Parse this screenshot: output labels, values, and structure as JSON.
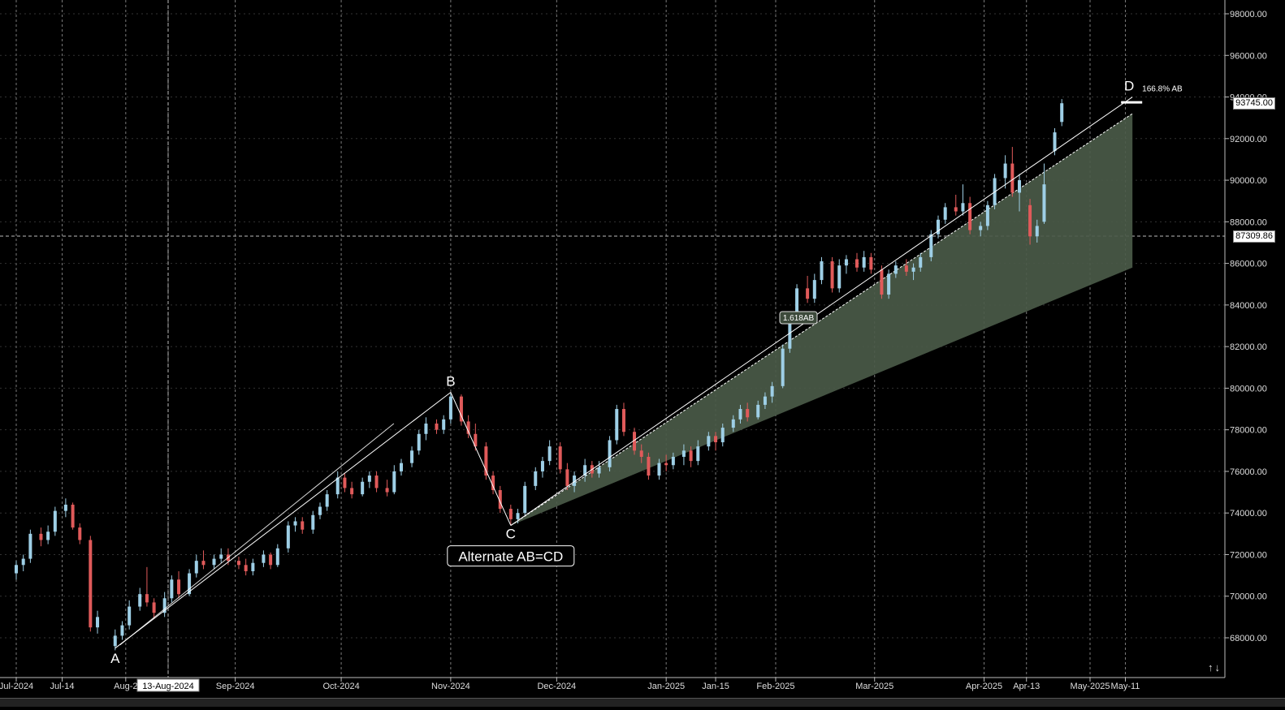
{
  "chart": {
    "background": "#000000",
    "up_color": "#9ecfe6",
    "down_color": "#e05a5a",
    "grid_color": "#7a7a7a",
    "price_axis_labels": [
      "98000.00",
      "96000.00",
      "94000.00",
      "92000.00",
      "90000.00",
      "88000.00",
      "86000.00",
      "84000.00",
      "82000.00",
      "80000.00",
      "78000.00",
      "76000.00",
      "74000.00",
      "72000.00",
      "70000.00",
      "68000.00"
    ],
    "price_tags": {
      "last_price": "93745.00",
      "crosshair_price": "87309.86"
    },
    "date_axis_labels": [
      "Jul-2024",
      "Jul-14",
      "Aug-2",
      "Sep-2024",
      "Oct-2024",
      "Nov-2024",
      "Dec-2024",
      "Jan-2025",
      "Jan-15",
      "Feb-2025",
      "Mar-2025",
      "Apr-2025",
      "Apr-13",
      "May-2025",
      "May-11"
    ],
    "crosshair_date": "13-Aug-2024",
    "pattern": {
      "name": "Alternate AB=CD",
      "points": {
        "A": "A",
        "B": "B",
        "C": "C",
        "D": "D"
      },
      "d_label": "166.8% AB",
      "ratio_label": "1.618AB"
    }
  },
  "chart_data": {
    "type": "candlestick",
    "title": "",
    "ylim": [
      67000,
      99000
    ],
    "x_range": [
      "2024-06-30",
      "2025-05-18"
    ],
    "candles": [
      {
        "date": "2024-07-01",
        "o": 71100,
        "h": 71700,
        "l": 70800,
        "c": 71500
      },
      {
        "date": "2024-07-03",
        "o": 71500,
        "h": 72000,
        "l": 71200,
        "c": 71800
      },
      {
        "date": "2024-07-05",
        "o": 71800,
        "h": 73200,
        "l": 71600,
        "c": 73000
      },
      {
        "date": "2024-07-08",
        "o": 73000,
        "h": 73300,
        "l": 72400,
        "c": 72700
      },
      {
        "date": "2024-07-10",
        "o": 72700,
        "h": 73400,
        "l": 72500,
        "c": 73100
      },
      {
        "date": "2024-07-12",
        "o": 73100,
        "h": 74300,
        "l": 72900,
        "c": 74100
      },
      {
        "date": "2024-07-15",
        "o": 74100,
        "h": 74700,
        "l": 73800,
        "c": 74400
      },
      {
        "date": "2024-07-17",
        "o": 74400,
        "h": 74500,
        "l": 73200,
        "c": 73300
      },
      {
        "date": "2024-07-19",
        "o": 73300,
        "h": 73500,
        "l": 72500,
        "c": 72700
      },
      {
        "date": "2024-07-22",
        "o": 72700,
        "h": 72900,
        "l": 68300,
        "c": 68500
      },
      {
        "date": "2024-07-24",
        "o": 68500,
        "h": 69300,
        "l": 68200,
        "c": 69000
      },
      {
        "date": "2024-07-29",
        "o": 67600,
        "h": 68400,
        "l": 67400,
        "c": 68100
      },
      {
        "date": "2024-07-31",
        "o": 68100,
        "h": 68800,
        "l": 67900,
        "c": 68600
      },
      {
        "date": "2024-08-02",
        "o": 68600,
        "h": 69800,
        "l": 68400,
        "c": 69500
      },
      {
        "date": "2024-08-05",
        "o": 69500,
        "h": 70400,
        "l": 69300,
        "c": 70100
      },
      {
        "date": "2024-08-07",
        "o": 70100,
        "h": 71400,
        "l": 69500,
        "c": 69700
      },
      {
        "date": "2024-08-09",
        "o": 69700,
        "h": 69900,
        "l": 68900,
        "c": 69200
      },
      {
        "date": "2024-08-12",
        "o": 69200,
        "h": 70200,
        "l": 69000,
        "c": 69900
      },
      {
        "date": "2024-08-14",
        "o": 69900,
        "h": 71000,
        "l": 69700,
        "c": 70800
      },
      {
        "date": "2024-08-16",
        "o": 70800,
        "h": 71200,
        "l": 69900,
        "c": 70100
      },
      {
        "date": "2024-08-19",
        "o": 70100,
        "h": 71300,
        "l": 70000,
        "c": 71100
      },
      {
        "date": "2024-08-21",
        "o": 71100,
        "h": 72000,
        "l": 70900,
        "c": 71700
      },
      {
        "date": "2024-08-23",
        "o": 71700,
        "h": 72200,
        "l": 71300,
        "c": 71500
      },
      {
        "date": "2024-08-26",
        "o": 71500,
        "h": 72000,
        "l": 71300,
        "c": 71800
      },
      {
        "date": "2024-08-28",
        "o": 71800,
        "h": 72300,
        "l": 71600,
        "c": 72000
      },
      {
        "date": "2024-08-30",
        "o": 72000,
        "h": 72300,
        "l": 71500,
        "c": 71700
      },
      {
        "date": "2024-09-02",
        "o": 71700,
        "h": 71900,
        "l": 71300,
        "c": 71500
      },
      {
        "date": "2024-09-04",
        "o": 71500,
        "h": 71800,
        "l": 71000,
        "c": 71200
      },
      {
        "date": "2024-09-06",
        "o": 71200,
        "h": 71800,
        "l": 71000,
        "c": 71600
      },
      {
        "date": "2024-09-09",
        "o": 71600,
        "h": 72200,
        "l": 71400,
        "c": 72000
      },
      {
        "date": "2024-09-11",
        "o": 72000,
        "h": 72100,
        "l": 71300,
        "c": 71500
      },
      {
        "date": "2024-09-13",
        "o": 71500,
        "h": 72500,
        "l": 71400,
        "c": 72300
      },
      {
        "date": "2024-09-16",
        "o": 72300,
        "h": 73600,
        "l": 72100,
        "c": 73400
      },
      {
        "date": "2024-09-18",
        "o": 73400,
        "h": 73800,
        "l": 73100,
        "c": 73600
      },
      {
        "date": "2024-09-20",
        "o": 73600,
        "h": 73800,
        "l": 73000,
        "c": 73200
      },
      {
        "date": "2024-09-23",
        "o": 73200,
        "h": 74100,
        "l": 73000,
        "c": 73900
      },
      {
        "date": "2024-09-25",
        "o": 73900,
        "h": 74500,
        "l": 73700,
        "c": 74300
      },
      {
        "date": "2024-09-27",
        "o": 74300,
        "h": 75100,
        "l": 74100,
        "c": 74900
      },
      {
        "date": "2024-09-30",
        "o": 74900,
        "h": 76000,
        "l": 74700,
        "c": 75700
      },
      {
        "date": "2024-10-02",
        "o": 75700,
        "h": 75900,
        "l": 75000,
        "c": 75200
      },
      {
        "date": "2024-10-04",
        "o": 75200,
        "h": 75500,
        "l": 74700,
        "c": 74900
      },
      {
        "date": "2024-10-07",
        "o": 74900,
        "h": 75700,
        "l": 74800,
        "c": 75500
      },
      {
        "date": "2024-10-09",
        "o": 75500,
        "h": 76000,
        "l": 75200,
        "c": 75800
      },
      {
        "date": "2024-10-11",
        "o": 75800,
        "h": 76000,
        "l": 75000,
        "c": 75200
      },
      {
        "date": "2024-10-14",
        "o": 75200,
        "h": 75600,
        "l": 74800,
        "c": 75000
      },
      {
        "date": "2024-10-16",
        "o": 75000,
        "h": 76300,
        "l": 74900,
        "c": 76000
      },
      {
        "date": "2024-10-18",
        "o": 76000,
        "h": 76600,
        "l": 75800,
        "c": 76400
      },
      {
        "date": "2024-10-21",
        "o": 76400,
        "h": 77200,
        "l": 76200,
        "c": 77000
      },
      {
        "date": "2024-10-23",
        "o": 77000,
        "h": 78000,
        "l": 76800,
        "c": 77800
      },
      {
        "date": "2024-10-25",
        "o": 77800,
        "h": 78600,
        "l": 77500,
        "c": 78300
      },
      {
        "date": "2024-10-28",
        "o": 78300,
        "h": 78500,
        "l": 77800,
        "c": 78000
      },
      {
        "date": "2024-10-30",
        "o": 78000,
        "h": 78700,
        "l": 77800,
        "c": 78500
      },
      {
        "date": "2024-11-01",
        "o": 78500,
        "h": 79800,
        "l": 78300,
        "c": 79600
      },
      {
        "date": "2024-11-04",
        "o": 79600,
        "h": 79700,
        "l": 78200,
        "c": 78400
      },
      {
        "date": "2024-11-06",
        "o": 78400,
        "h": 78700,
        "l": 77600,
        "c": 77800
      },
      {
        "date": "2024-11-08",
        "o": 77800,
        "h": 78300,
        "l": 77000,
        "c": 77200
      },
      {
        "date": "2024-11-11",
        "o": 77200,
        "h": 77400,
        "l": 75600,
        "c": 75800
      },
      {
        "date": "2024-11-13",
        "o": 75800,
        "h": 76000,
        "l": 74900,
        "c": 75100
      },
      {
        "date": "2024-11-15",
        "o": 75100,
        "h": 75300,
        "l": 74000,
        "c": 74200
      },
      {
        "date": "2024-11-18",
        "o": 74200,
        "h": 74400,
        "l": 73400,
        "c": 73700
      },
      {
        "date": "2024-11-20",
        "o": 73700,
        "h": 74200,
        "l": 73500,
        "c": 74000
      },
      {
        "date": "2024-11-22",
        "o": 74000,
        "h": 75500,
        "l": 73900,
        "c": 75300
      },
      {
        "date": "2024-11-25",
        "o": 75300,
        "h": 76200,
        "l": 75100,
        "c": 76000
      },
      {
        "date": "2024-11-27",
        "o": 76000,
        "h": 76700,
        "l": 75700,
        "c": 76500
      },
      {
        "date": "2024-11-29",
        "o": 76500,
        "h": 77500,
        "l": 76300,
        "c": 77200
      },
      {
        "date": "2024-12-02",
        "o": 77200,
        "h": 77400,
        "l": 75900,
        "c": 76100
      },
      {
        "date": "2024-12-04",
        "o": 76100,
        "h": 76400,
        "l": 75100,
        "c": 75300
      },
      {
        "date": "2024-12-06",
        "o": 75300,
        "h": 76000,
        "l": 75000,
        "c": 75800
      },
      {
        "date": "2024-12-09",
        "o": 75800,
        "h": 76600,
        "l": 75500,
        "c": 76300
      },
      {
        "date": "2024-12-11",
        "o": 76300,
        "h": 76500,
        "l": 75700,
        "c": 75900
      },
      {
        "date": "2024-12-13",
        "o": 75900,
        "h": 76500,
        "l": 75700,
        "c": 76200
      },
      {
        "date": "2024-12-16",
        "o": 76200,
        "h": 77700,
        "l": 76000,
        "c": 77500
      },
      {
        "date": "2024-12-18",
        "o": 77500,
        "h": 79200,
        "l": 77300,
        "c": 79000
      },
      {
        "date": "2024-12-20",
        "o": 79000,
        "h": 79300,
        "l": 77700,
        "c": 77900
      },
      {
        "date": "2024-12-23",
        "o": 77900,
        "h": 78100,
        "l": 76800,
        "c": 77000
      },
      {
        "date": "2024-12-25",
        "o": 77000,
        "h": 77300,
        "l": 76400,
        "c": 76700
      },
      {
        "date": "2024-12-27",
        "o": 76700,
        "h": 76900,
        "l": 75600,
        "c": 75800
      },
      {
        "date": "2024-12-30",
        "o": 75800,
        "h": 76600,
        "l": 75600,
        "c": 76400
      },
      {
        "date": "2025-01-01",
        "o": 76400,
        "h": 76800,
        "l": 76000,
        "c": 76300
      },
      {
        "date": "2025-01-03",
        "o": 76300,
        "h": 76900,
        "l": 76100,
        "c": 76700
      },
      {
        "date": "2025-01-06",
        "o": 76700,
        "h": 77300,
        "l": 76300,
        "c": 77000
      },
      {
        "date": "2025-01-08",
        "o": 77000,
        "h": 77200,
        "l": 76200,
        "c": 76500
      },
      {
        "date": "2025-01-10",
        "o": 76500,
        "h": 77500,
        "l": 76300,
        "c": 77200
      },
      {
        "date": "2025-01-13",
        "o": 77200,
        "h": 77900,
        "l": 77000,
        "c": 77700
      },
      {
        "date": "2025-01-15",
        "o": 77700,
        "h": 77900,
        "l": 77000,
        "c": 77400
      },
      {
        "date": "2025-01-17",
        "o": 77400,
        "h": 78300,
        "l": 77200,
        "c": 78100
      },
      {
        "date": "2025-01-20",
        "o": 78100,
        "h": 78700,
        "l": 77900,
        "c": 78500
      },
      {
        "date": "2025-01-22",
        "o": 78500,
        "h": 79200,
        "l": 78300,
        "c": 79000
      },
      {
        "date": "2025-01-24",
        "o": 79000,
        "h": 79300,
        "l": 78400,
        "c": 78600
      },
      {
        "date": "2025-01-27",
        "o": 78600,
        "h": 79400,
        "l": 78500,
        "c": 79200
      },
      {
        "date": "2025-01-29",
        "o": 79200,
        "h": 79800,
        "l": 79000,
        "c": 79600
      },
      {
        "date": "2025-01-31",
        "o": 79600,
        "h": 80300,
        "l": 79300,
        "c": 80100
      },
      {
        "date": "2025-02-03",
        "o": 80100,
        "h": 82100,
        "l": 80000,
        "c": 81900
      },
      {
        "date": "2025-02-05",
        "o": 81900,
        "h": 83600,
        "l": 81700,
        "c": 83400
      },
      {
        "date": "2025-02-07",
        "o": 83400,
        "h": 85000,
        "l": 83200,
        "c": 84800
      },
      {
        "date": "2025-02-10",
        "o": 84800,
        "h": 85400,
        "l": 84100,
        "c": 84300
      },
      {
        "date": "2025-02-12",
        "o": 84300,
        "h": 85500,
        "l": 84100,
        "c": 85200
      },
      {
        "date": "2025-02-14",
        "o": 85200,
        "h": 86300,
        "l": 85000,
        "c": 86100
      },
      {
        "date": "2025-02-17",
        "o": 86100,
        "h": 86300,
        "l": 84600,
        "c": 84800
      },
      {
        "date": "2025-02-19",
        "o": 84800,
        "h": 86200,
        "l": 84600,
        "c": 85900
      },
      {
        "date": "2025-02-21",
        "o": 85900,
        "h": 86400,
        "l": 85500,
        "c": 86200
      },
      {
        "date": "2025-02-24",
        "o": 86200,
        "h": 86500,
        "l": 85600,
        "c": 85800
      },
      {
        "date": "2025-02-26",
        "o": 85800,
        "h": 86600,
        "l": 85600,
        "c": 86300
      },
      {
        "date": "2025-02-28",
        "o": 86300,
        "h": 86500,
        "l": 85500,
        "c": 85700
      },
      {
        "date": "2025-03-03",
        "o": 85700,
        "h": 85900,
        "l": 84300,
        "c": 84500
      },
      {
        "date": "2025-03-05",
        "o": 84500,
        "h": 85700,
        "l": 84300,
        "c": 85500
      },
      {
        "date": "2025-03-07",
        "o": 85500,
        "h": 86100,
        "l": 85300,
        "c": 85900
      },
      {
        "date": "2025-03-10",
        "o": 85900,
        "h": 86200,
        "l": 85400,
        "c": 85600
      },
      {
        "date": "2025-03-12",
        "o": 85600,
        "h": 86000,
        "l": 85200,
        "c": 85800
      },
      {
        "date": "2025-03-14",
        "o": 85800,
        "h": 86500,
        "l": 85600,
        "c": 86300
      },
      {
        "date": "2025-03-17",
        "o": 86300,
        "h": 87600,
        "l": 86100,
        "c": 87400
      },
      {
        "date": "2025-03-19",
        "o": 87400,
        "h": 88300,
        "l": 87200,
        "c": 88100
      },
      {
        "date": "2025-03-21",
        "o": 88100,
        "h": 88900,
        "l": 87900,
        "c": 88700
      },
      {
        "date": "2025-03-24",
        "o": 88700,
        "h": 89300,
        "l": 88300,
        "c": 88500
      },
      {
        "date": "2025-03-26",
        "o": 88500,
        "h": 89800,
        "l": 88300,
        "c": 88900
      },
      {
        "date": "2025-03-28",
        "o": 88900,
        "h": 89200,
        "l": 87400,
        "c": 87600
      },
      {
        "date": "2025-03-31",
        "o": 87600,
        "h": 88000,
        "l": 87300,
        "c": 87800
      },
      {
        "date": "2025-04-02",
        "o": 87800,
        "h": 89000,
        "l": 87600,
        "c": 88800
      },
      {
        "date": "2025-04-04",
        "o": 88800,
        "h": 90300,
        "l": 88600,
        "c": 90100
      },
      {
        "date": "2025-04-07",
        "o": 90100,
        "h": 91200,
        "l": 89600,
        "c": 90800
      },
      {
        "date": "2025-04-09",
        "o": 90800,
        "h": 91600,
        "l": 89200,
        "c": 89400
      },
      {
        "date": "2025-04-11",
        "o": 89400,
        "h": 90300,
        "l": 88500,
        "c": 90000
      },
      {
        "date": "2025-04-14",
        "o": 88800,
        "h": 89100,
        "l": 86900,
        "c": 87300
      },
      {
        "date": "2025-04-16",
        "o": 87300,
        "h": 88100,
        "l": 87000,
        "c": 87800
      },
      {
        "date": "2025-04-18",
        "o": 88000,
        "h": 90800,
        "l": 87900,
        "c": 89800
      },
      {
        "date": "2025-04-21",
        "o": 91400,
        "h": 92500,
        "l": 91200,
        "c": 92300
      },
      {
        "date": "2025-04-23",
        "o": 92800,
        "h": 93900,
        "l": 92600,
        "c": 93700
      }
    ],
    "pattern_points": [
      {
        "label": "A",
        "date": "2024-07-29",
        "price": 67500
      },
      {
        "label": "B",
        "date": "2024-11-01",
        "price": 79800
      },
      {
        "label": "C",
        "date": "2024-11-18",
        "price": 73400
      },
      {
        "label": "D",
        "date": "2025-05-13",
        "price": 94000
      }
    ],
    "projection_zone": {
      "start": {
        "date": "2024-11-18",
        "price": 73400
      },
      "end_date": "2025-05-13",
      "upper_price": 93200,
      "lower_price": 85800
    },
    "crosshair": {
      "date": "2024-08-13",
      "price": 87309.86
    },
    "last_price": 93745.0
  }
}
